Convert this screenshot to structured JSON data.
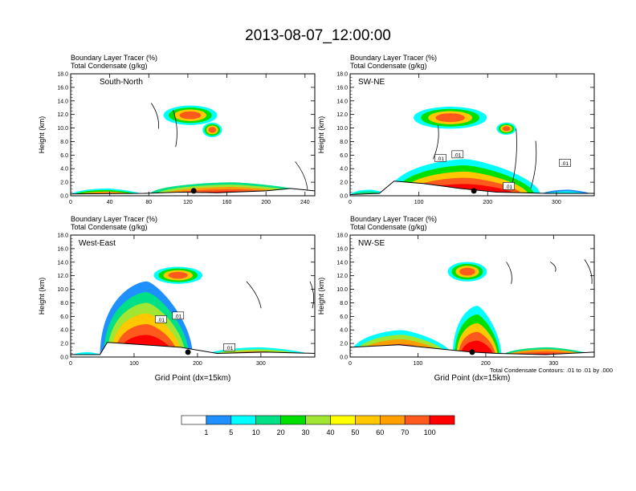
{
  "title": "2013-08-07_12:00:00",
  "colorbar": {
    "labels": [
      "1",
      "5",
      "10",
      "20",
      "30",
      "40",
      "50",
      "60",
      "70",
      "100"
    ],
    "colors": [
      "#ffffff",
      "#1e90ff",
      "#00ffff",
      "#00e187",
      "#00e000",
      "#a0e632",
      "#ffff00",
      "#ffc800",
      "#ffa000",
      "#ff5a1e",
      "#ff0000"
    ]
  },
  "footnote": "Total Condensate Contours: .01 to .01 by .000",
  "chart_data": [
    {
      "type": "contour-cross-section",
      "panel_label": "South-North",
      "title_line1": "Boundary Layer Tracer   (%)",
      "title_line2": "Total Condensate   (g/kg)",
      "ylabel": "Height (km)",
      "xlabel": "",
      "xlim": [
        0,
        250
      ],
      "ylim": [
        0,
        18
      ],
      "xticks": [
        "0",
        "40",
        "80",
        "120",
        "160",
        "200",
        "240"
      ],
      "xtick_values": [
        0,
        40,
        80,
        120,
        160,
        200,
        240
      ],
      "yticks": [
        "0.0",
        "2.0",
        "4.0",
        "6.0",
        "8.0",
        "10.0",
        "12.0",
        "14.0",
        "16.0",
        "18.0"
      ],
      "marker_x": 126,
      "contour_labels": []
    },
    {
      "type": "contour-cross-section",
      "panel_label": "SW-NE",
      "title_line1": "Boundary Layer Tracer   (%)",
      "title_line2": "Total Condensate   (g/kg)",
      "ylabel": "Height (km)",
      "xlabel": "",
      "xlim": [
        0,
        355
      ],
      "ylim": [
        0,
        18
      ],
      "xticks": [
        "0",
        "100",
        "200",
        "300"
      ],
      "xtick_values": [
        0,
        100,
        200,
        300
      ],
      "yticks": [
        "0.0",
        "2.0",
        "4.0",
        "6.0",
        "8.0",
        "10.0",
        "12.0",
        "14.0",
        "16.0",
        "18.0"
      ],
      "marker_x": 180,
      "contour_labels": [
        ".01",
        ".01",
        ".01",
        ".01"
      ]
    },
    {
      "type": "contour-cross-section",
      "panel_label": "West-East",
      "title_line1": "Boundary Layer Tracer   (%)",
      "title_line2": "Total Condensate   (g/kg)",
      "ylabel": "Height (km)",
      "xlabel": "Grid Point (dx=15km)",
      "xlim": [
        0,
        385
      ],
      "ylim": [
        0,
        18
      ],
      "xticks": [
        "0",
        "100",
        "200",
        "300"
      ],
      "xtick_values": [
        0,
        100,
        200,
        300
      ],
      "yticks": [
        "0.0",
        "2.0",
        "4.0",
        "6.0",
        "8.0",
        "10.0",
        "12.0",
        "14.0",
        "16.0",
        "18.0"
      ],
      "marker_x": 185,
      "contour_labels": [
        ".01",
        ".01",
        ".01"
      ]
    },
    {
      "type": "contour-cross-section",
      "panel_label": "NW-SE",
      "title_line1": "Boundary Layer Tracer   (%)",
      "title_line2": "Total Condensate   (g/kg)",
      "ylabel": "Height (km)",
      "xlabel": "Grid Point (dx=15km)",
      "xlim": [
        0,
        360
      ],
      "ylim": [
        0,
        18
      ],
      "xticks": [
        "0",
        "100",
        "200",
        "300"
      ],
      "xtick_values": [
        0,
        100,
        200,
        300
      ],
      "yticks": [
        "0.0",
        "2.0",
        "4.0",
        "6.0",
        "8.0",
        "10.0",
        "12.0",
        "14.0",
        "16.0",
        "18.0"
      ],
      "marker_x": 180,
      "contour_labels": []
    }
  ]
}
